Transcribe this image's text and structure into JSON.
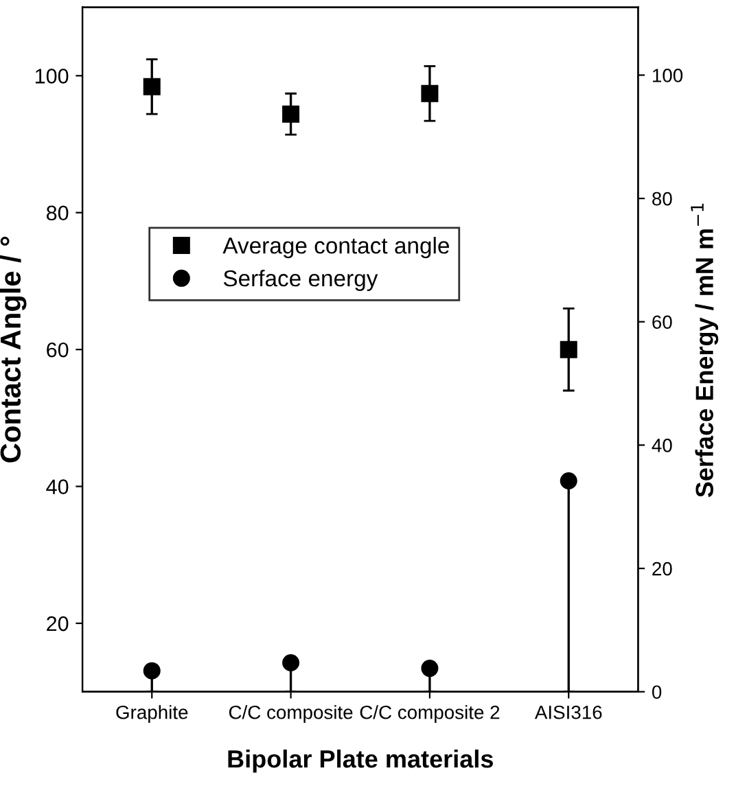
{
  "chart_data": {
    "type": "scatter",
    "xlabel": "Bipolar Plate materials",
    "ylabel": "Contact Angle / °",
    "y2label": "Serface Energy / mN m$^{−1}$",
    "categories": [
      "Graphite",
      "C/C composite",
      "C/C composite 2",
      "AISI316"
    ],
    "series": [
      {
        "name": "Average contact angle",
        "color": "#000000",
        "marker": "square",
        "values": [
          98.4,
          94.4,
          97.4,
          60
        ],
        "errors": [
          4,
          3,
          4,
          6
        ]
      },
      {
        "name": "Serface energy",
        "color": "#000000",
        "marker": "circle",
        "axis": "y2",
        "values": [
          3.4,
          4.7,
          3.8,
          34.2
        ],
        "errors": [
          [
            0,
            3.4
          ],
          [
            0,
            4.7
          ],
          [
            0,
            3.8
          ],
          [
            0,
            34.2
          ]
        ]
      }
    ],
    "ylim": [
      10,
      110
    ],
    "yticks": [
      20,
      40,
      60,
      80,
      100
    ],
    "y2lim": [
      0,
      111
    ],
    "y2ticks": [
      0,
      20,
      40,
      60,
      80,
      100
    ],
    "grid": false,
    "legend": "center left"
  }
}
